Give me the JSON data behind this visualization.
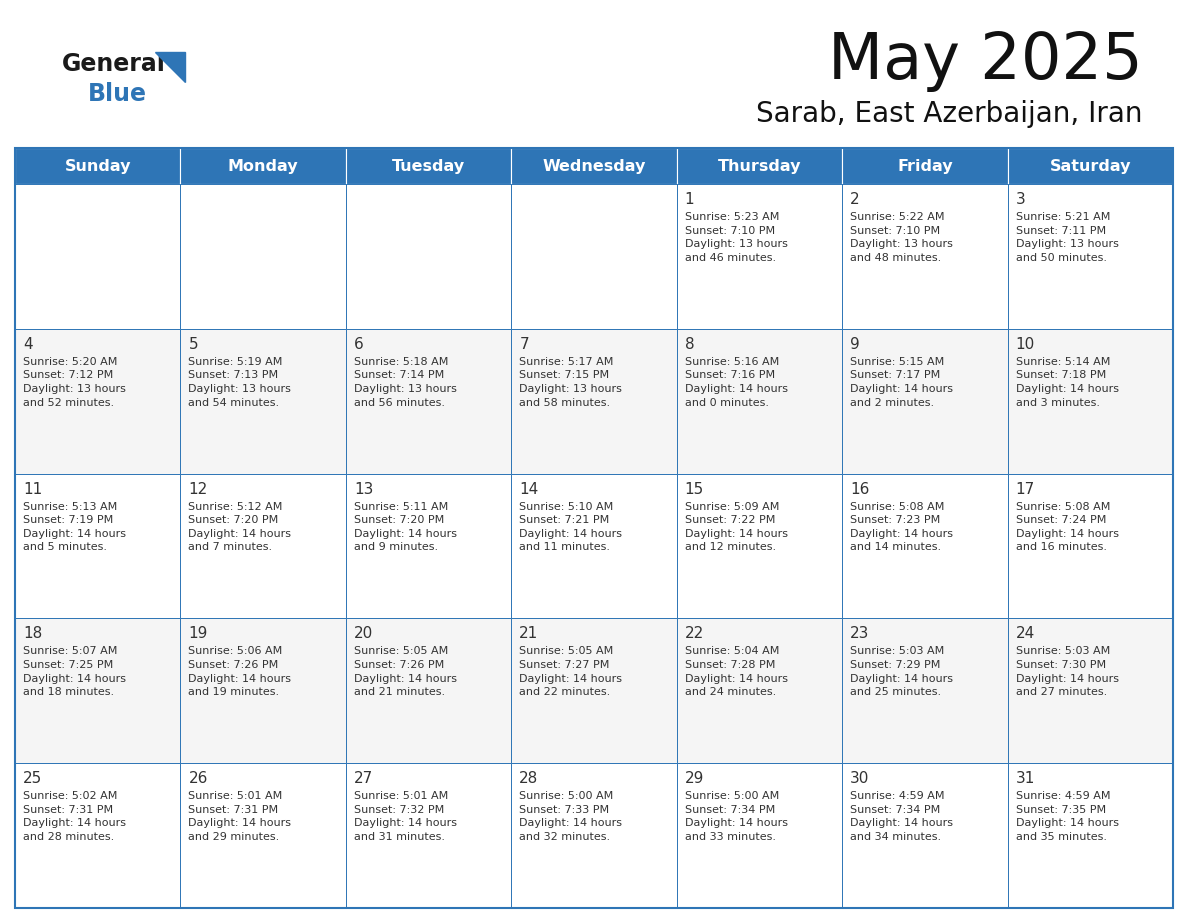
{
  "title": "May 2025",
  "subtitle": "Sarab, East Azerbaijan, Iran",
  "header_color": "#2E75B6",
  "header_text_color": "#FFFFFF",
  "border_color": "#2E75B6",
  "text_color": "#333333",
  "day_headers": [
    "Sunday",
    "Monday",
    "Tuesday",
    "Wednesday",
    "Thursday",
    "Friday",
    "Saturday"
  ],
  "weeks": [
    [
      {
        "day": "",
        "info": ""
      },
      {
        "day": "",
        "info": ""
      },
      {
        "day": "",
        "info": ""
      },
      {
        "day": "",
        "info": ""
      },
      {
        "day": "1",
        "info": "Sunrise: 5:23 AM\nSunset: 7:10 PM\nDaylight: 13 hours\nand 46 minutes."
      },
      {
        "day": "2",
        "info": "Sunrise: 5:22 AM\nSunset: 7:10 PM\nDaylight: 13 hours\nand 48 minutes."
      },
      {
        "day": "3",
        "info": "Sunrise: 5:21 AM\nSunset: 7:11 PM\nDaylight: 13 hours\nand 50 minutes."
      }
    ],
    [
      {
        "day": "4",
        "info": "Sunrise: 5:20 AM\nSunset: 7:12 PM\nDaylight: 13 hours\nand 52 minutes."
      },
      {
        "day": "5",
        "info": "Sunrise: 5:19 AM\nSunset: 7:13 PM\nDaylight: 13 hours\nand 54 minutes."
      },
      {
        "day": "6",
        "info": "Sunrise: 5:18 AM\nSunset: 7:14 PM\nDaylight: 13 hours\nand 56 minutes."
      },
      {
        "day": "7",
        "info": "Sunrise: 5:17 AM\nSunset: 7:15 PM\nDaylight: 13 hours\nand 58 minutes."
      },
      {
        "day": "8",
        "info": "Sunrise: 5:16 AM\nSunset: 7:16 PM\nDaylight: 14 hours\nand 0 minutes."
      },
      {
        "day": "9",
        "info": "Sunrise: 5:15 AM\nSunset: 7:17 PM\nDaylight: 14 hours\nand 2 minutes."
      },
      {
        "day": "10",
        "info": "Sunrise: 5:14 AM\nSunset: 7:18 PM\nDaylight: 14 hours\nand 3 minutes."
      }
    ],
    [
      {
        "day": "11",
        "info": "Sunrise: 5:13 AM\nSunset: 7:19 PM\nDaylight: 14 hours\nand 5 minutes."
      },
      {
        "day": "12",
        "info": "Sunrise: 5:12 AM\nSunset: 7:20 PM\nDaylight: 14 hours\nand 7 minutes."
      },
      {
        "day": "13",
        "info": "Sunrise: 5:11 AM\nSunset: 7:20 PM\nDaylight: 14 hours\nand 9 minutes."
      },
      {
        "day": "14",
        "info": "Sunrise: 5:10 AM\nSunset: 7:21 PM\nDaylight: 14 hours\nand 11 minutes."
      },
      {
        "day": "15",
        "info": "Sunrise: 5:09 AM\nSunset: 7:22 PM\nDaylight: 14 hours\nand 12 minutes."
      },
      {
        "day": "16",
        "info": "Sunrise: 5:08 AM\nSunset: 7:23 PM\nDaylight: 14 hours\nand 14 minutes."
      },
      {
        "day": "17",
        "info": "Sunrise: 5:08 AM\nSunset: 7:24 PM\nDaylight: 14 hours\nand 16 minutes."
      }
    ],
    [
      {
        "day": "18",
        "info": "Sunrise: 5:07 AM\nSunset: 7:25 PM\nDaylight: 14 hours\nand 18 minutes."
      },
      {
        "day": "19",
        "info": "Sunrise: 5:06 AM\nSunset: 7:26 PM\nDaylight: 14 hours\nand 19 minutes."
      },
      {
        "day": "20",
        "info": "Sunrise: 5:05 AM\nSunset: 7:26 PM\nDaylight: 14 hours\nand 21 minutes."
      },
      {
        "day": "21",
        "info": "Sunrise: 5:05 AM\nSunset: 7:27 PM\nDaylight: 14 hours\nand 22 minutes."
      },
      {
        "day": "22",
        "info": "Sunrise: 5:04 AM\nSunset: 7:28 PM\nDaylight: 14 hours\nand 24 minutes."
      },
      {
        "day": "23",
        "info": "Sunrise: 5:03 AM\nSunset: 7:29 PM\nDaylight: 14 hours\nand 25 minutes."
      },
      {
        "day": "24",
        "info": "Sunrise: 5:03 AM\nSunset: 7:30 PM\nDaylight: 14 hours\nand 27 minutes."
      }
    ],
    [
      {
        "day": "25",
        "info": "Sunrise: 5:02 AM\nSunset: 7:31 PM\nDaylight: 14 hours\nand 28 minutes."
      },
      {
        "day": "26",
        "info": "Sunrise: 5:01 AM\nSunset: 7:31 PM\nDaylight: 14 hours\nand 29 minutes."
      },
      {
        "day": "27",
        "info": "Sunrise: 5:01 AM\nSunset: 7:32 PM\nDaylight: 14 hours\nand 31 minutes."
      },
      {
        "day": "28",
        "info": "Sunrise: 5:00 AM\nSunset: 7:33 PM\nDaylight: 14 hours\nand 32 minutes."
      },
      {
        "day": "29",
        "info": "Sunrise: 5:00 AM\nSunset: 7:34 PM\nDaylight: 14 hours\nand 33 minutes."
      },
      {
        "day": "30",
        "info": "Sunrise: 4:59 AM\nSunset: 7:34 PM\nDaylight: 14 hours\nand 34 minutes."
      },
      {
        "day": "31",
        "info": "Sunrise: 4:59 AM\nSunset: 7:35 PM\nDaylight: 14 hours\nand 35 minutes."
      }
    ]
  ]
}
